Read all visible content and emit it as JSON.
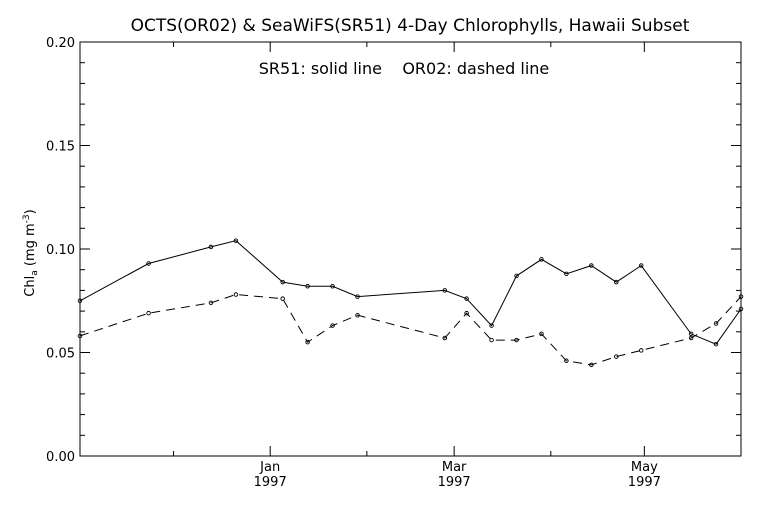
{
  "chart_data": {
    "type": "line",
    "title": "OCTS(OR02) & SeaWiFS(SR51) 4-Day Chlorophylls, Hawaii Subset",
    "annotation": "SR51: solid line    OR02: dashed line",
    "ylabel": {
      "base": "Chl",
      "sub": "a",
      "unit_open": " (mg m",
      "unit_sup": "-3",
      "unit_close": ")"
    },
    "ylim": [
      0,
      0.2
    ],
    "xlim": [
      "1996-11-01",
      "1997-06-01"
    ],
    "yticks": [
      {
        "value": 0.0,
        "label": "0.00"
      },
      {
        "value": 0.05,
        "label": "0.05"
      },
      {
        "value": 0.1,
        "label": "0.10"
      },
      {
        "value": 0.15,
        "label": "0.15"
      },
      {
        "value": 0.2,
        "label": "0.20"
      }
    ],
    "xticks_major": [
      {
        "date": "1997-01-01",
        "month": "Jan",
        "year": "1997"
      },
      {
        "date": "1997-03-01",
        "month": "Mar",
        "year": "1997"
      },
      {
        "date": "1997-05-01",
        "month": "May",
        "year": "1997"
      }
    ],
    "xticks_minor": [
      "1996-12-01",
      "1997-02-01",
      "1997-04-01"
    ],
    "grid": false,
    "series": [
      {
        "line_style": "solid",
        "points": [
          {
            "x": "1996-11-01",
            "y": 0.075
          },
          {
            "x": "1996-11-23",
            "y": 0.093
          },
          {
            "x": "1996-12-13",
            "y": 0.101
          },
          {
            "x": "1996-12-21",
            "y": 0.104
          },
          {
            "x": "1997-01-05",
            "y": 0.084
          },
          {
            "x": "1997-01-13",
            "y": 0.082
          },
          {
            "x": "1997-01-21",
            "y": 0.082
          },
          {
            "x": "1997-01-29",
            "y": 0.077
          },
          {
            "x": "1997-02-26",
            "y": 0.08
          },
          {
            "x": "1997-03-05",
            "y": 0.076
          },
          {
            "x": "1997-03-13",
            "y": 0.063
          },
          {
            "x": "1997-03-21",
            "y": 0.087
          },
          {
            "x": "1997-03-29",
            "y": 0.095
          },
          {
            "x": "1997-04-06",
            "y": 0.088
          },
          {
            "x": "1997-04-14",
            "y": 0.092
          },
          {
            "x": "1997-04-22",
            "y": 0.084
          },
          {
            "x": "1997-04-30",
            "y": 0.092
          },
          {
            "x": "1997-05-16",
            "y": 0.059
          },
          {
            "x": "1997-05-24",
            "y": 0.054
          },
          {
            "x": "1997-06-01",
            "y": 0.071
          }
        ]
      },
      {
        "line_style": "dashed",
        "points": [
          {
            "x": "1996-11-01",
            "y": 0.058
          },
          {
            "x": "1996-11-23",
            "y": 0.069
          },
          {
            "x": "1996-12-13",
            "y": 0.074
          },
          {
            "x": "1996-12-21",
            "y": 0.078
          },
          {
            "x": "1997-01-05",
            "y": 0.076
          },
          {
            "x": "1997-01-13",
            "y": 0.055
          },
          {
            "x": "1997-01-21",
            "y": 0.063
          },
          {
            "x": "1997-01-29",
            "y": 0.068
          },
          {
            "x": "1997-02-26",
            "y": 0.057
          },
          {
            "x": "1997-03-05",
            "y": 0.069
          },
          {
            "x": "1997-03-13",
            "y": 0.056
          },
          {
            "x": "1997-03-21",
            "y": 0.056
          },
          {
            "x": "1997-03-29",
            "y": 0.059
          },
          {
            "x": "1997-04-06",
            "y": 0.046
          },
          {
            "x": "1997-04-14",
            "y": 0.044
          },
          {
            "x": "1997-04-22",
            "y": 0.048
          },
          {
            "x": "1997-04-30",
            "y": 0.051
          },
          {
            "x": "1997-05-16",
            "y": 0.057
          },
          {
            "x": "1997-05-24",
            "y": 0.064
          },
          {
            "x": "1997-06-01",
            "y": 0.077
          }
        ]
      }
    ]
  }
}
